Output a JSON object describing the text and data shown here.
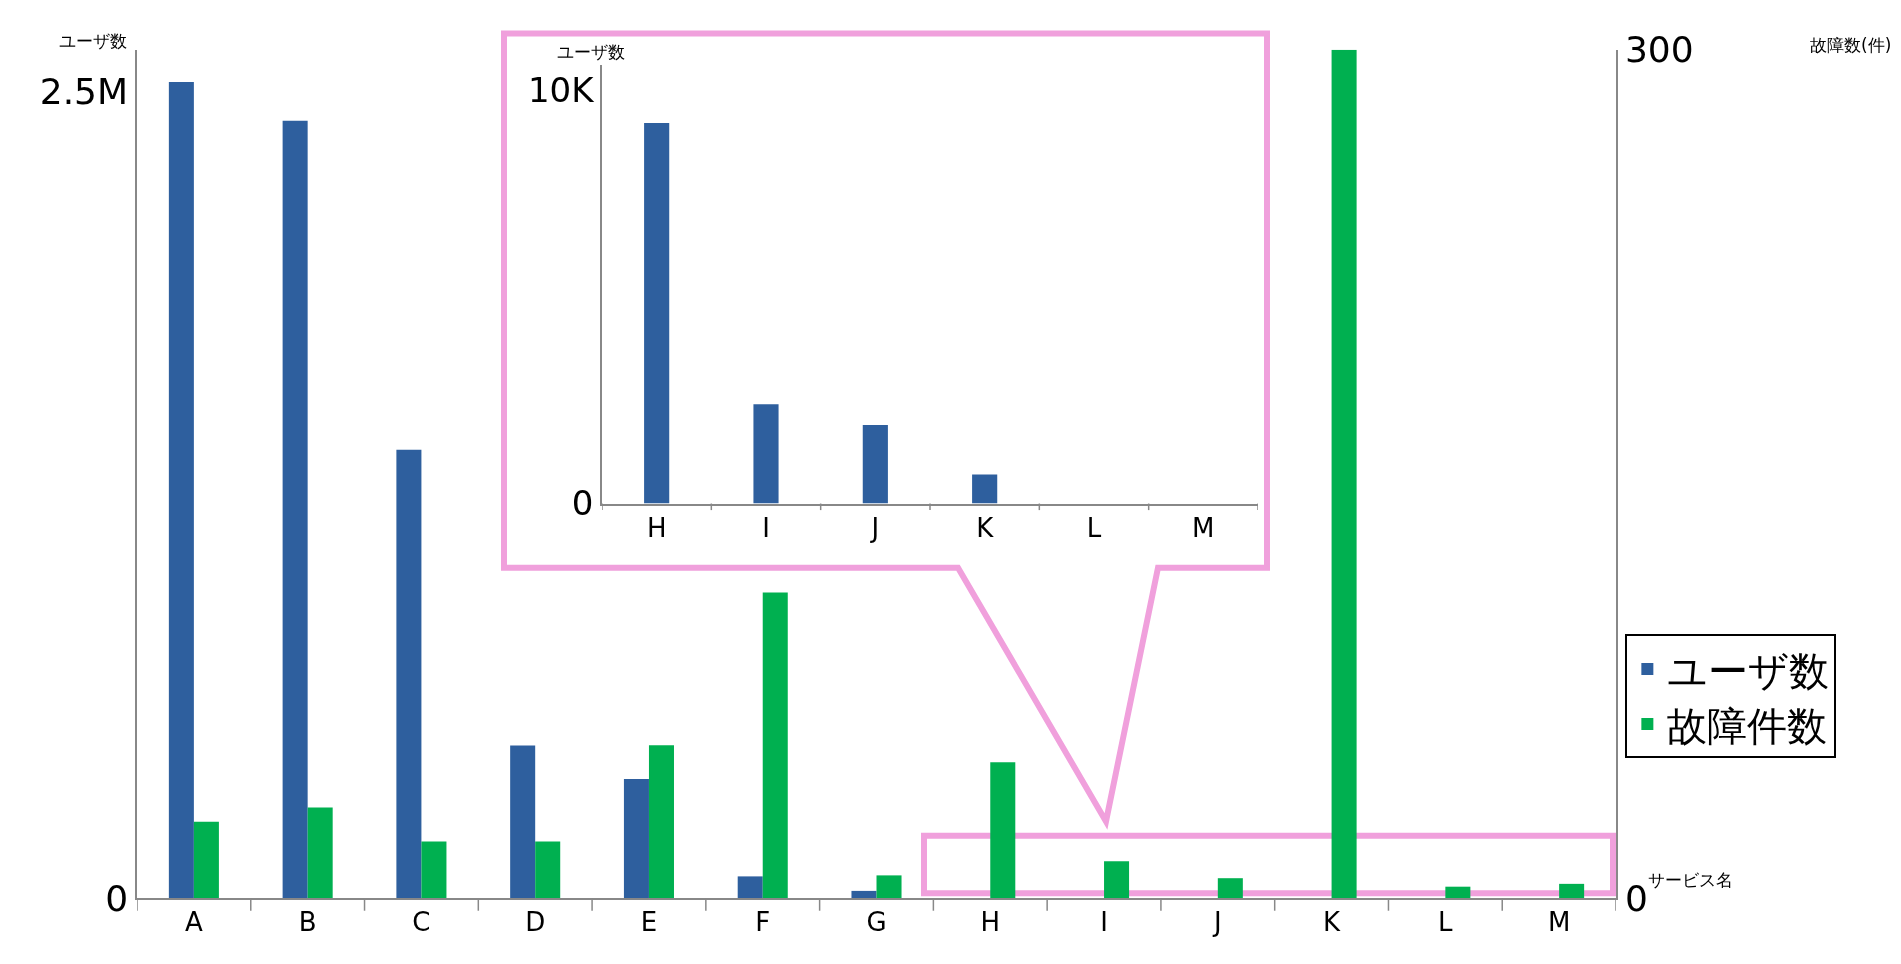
{
  "chart_data": [
    {
      "type": "bar",
      "xlabel": "サービス名",
      "ylabel": "ユーザ数",
      "y2label": "故障数(件)",
      "categories": [
        "A",
        "B",
        "C",
        "D",
        "E",
        "F",
        "G",
        "H",
        "I",
        "J",
        "K",
        "L",
        "M"
      ],
      "series": [
        {
          "name": "ユーザ数",
          "color": "#2e5f9e",
          "values": [
            2530000,
            2410000,
            1390000,
            473000,
            369000,
            67000,
            22000,
            0,
            0,
            0,
            0,
            0,
            0
          ]
        },
        {
          "name": "故障件数",
          "color": "#00b050",
          "axis": "y2",
          "values": [
            27,
            32,
            20,
            20,
            54,
            108,
            8,
            48,
            13,
            7,
            300,
            4,
            5
          ]
        }
      ],
      "ylim": [
        0,
        2630000
      ],
      "yticks": [
        0,
        {
          "value": 2500000,
          "label": "2.5M"
        }
      ],
      "y2lim": [
        0,
        300
      ],
      "y2ticks": [
        0,
        300
      ],
      "grid": false,
      "legend": "bottom right"
    },
    {
      "type": "bar",
      "ylabel": "ユーザ数",
      "categories": [
        "H",
        "I",
        "J",
        "K",
        "L",
        "M"
      ],
      "series": [
        {
          "color": "#2e5f9e",
          "values": [
            9200,
            2400,
            1900,
            700,
            0,
            0
          ]
        }
      ],
      "ylim": [
        0,
        10600
      ],
      "yticks": [
        0,
        {
          "value": 10000,
          "label": "10K"
        }
      ],
      "grid": false
    }
  ]
}
